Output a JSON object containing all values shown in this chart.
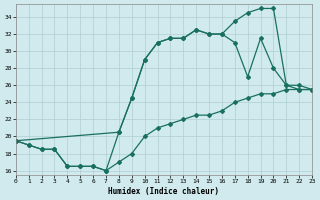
{
  "line1_x": [
    0,
    1,
    2,
    3,
    4,
    5,
    6,
    7,
    8,
    9,
    10,
    11,
    12,
    13,
    14,
    15,
    16,
    17,
    18,
    19,
    20,
    21,
    22,
    23
  ],
  "line1_y": [
    19.5,
    19.0,
    18.5,
    18.5,
    16.5,
    16.5,
    16.5,
    16.0,
    20.5,
    24.5,
    29.0,
    31.0,
    31.5,
    31.5,
    32.5,
    32.0,
    32.0,
    33.5,
    34.5,
    35.0,
    35.0,
    26.0,
    26.0,
    25.5
  ],
  "line2_x": [
    0,
    8,
    9,
    10,
    11,
    12,
    13,
    14,
    15,
    16,
    17,
    18,
    19,
    20,
    21,
    22,
    23
  ],
  "line2_y": [
    19.5,
    20.5,
    24.5,
    29.0,
    31.0,
    31.5,
    31.5,
    32.5,
    32.0,
    32.0,
    31.0,
    27.0,
    31.5,
    28.0,
    26.0,
    25.5,
    25.5
  ],
  "line3_x": [
    0,
    1,
    2,
    3,
    4,
    5,
    6,
    7,
    8,
    9,
    10,
    11,
    12,
    13,
    14,
    15,
    16,
    17,
    18,
    19,
    20,
    21,
    22,
    23
  ],
  "line3_y": [
    19.5,
    19.0,
    18.5,
    18.5,
    16.5,
    16.5,
    16.5,
    16.0,
    17.0,
    18.0,
    20.0,
    21.0,
    21.5,
    22.0,
    22.5,
    22.5,
    23.0,
    24.0,
    24.5,
    25.0,
    25.0,
    25.5,
    25.5,
    25.5
  ],
  "line_color": "#1a7060",
  "bg_color": "#d0eaed",
  "grid_color": "#b0ced4",
  "xlabel": "Humidex (Indice chaleur)",
  "xlim": [
    0,
    23
  ],
  "ylim": [
    15.5,
    35.5
  ],
  "yticks": [
    16,
    18,
    20,
    22,
    24,
    26,
    28,
    30,
    32,
    34
  ],
  "xticks": [
    0,
    1,
    2,
    3,
    4,
    5,
    6,
    7,
    8,
    9,
    10,
    11,
    12,
    13,
    14,
    15,
    16,
    17,
    18,
    19,
    20,
    21,
    22,
    23
  ]
}
